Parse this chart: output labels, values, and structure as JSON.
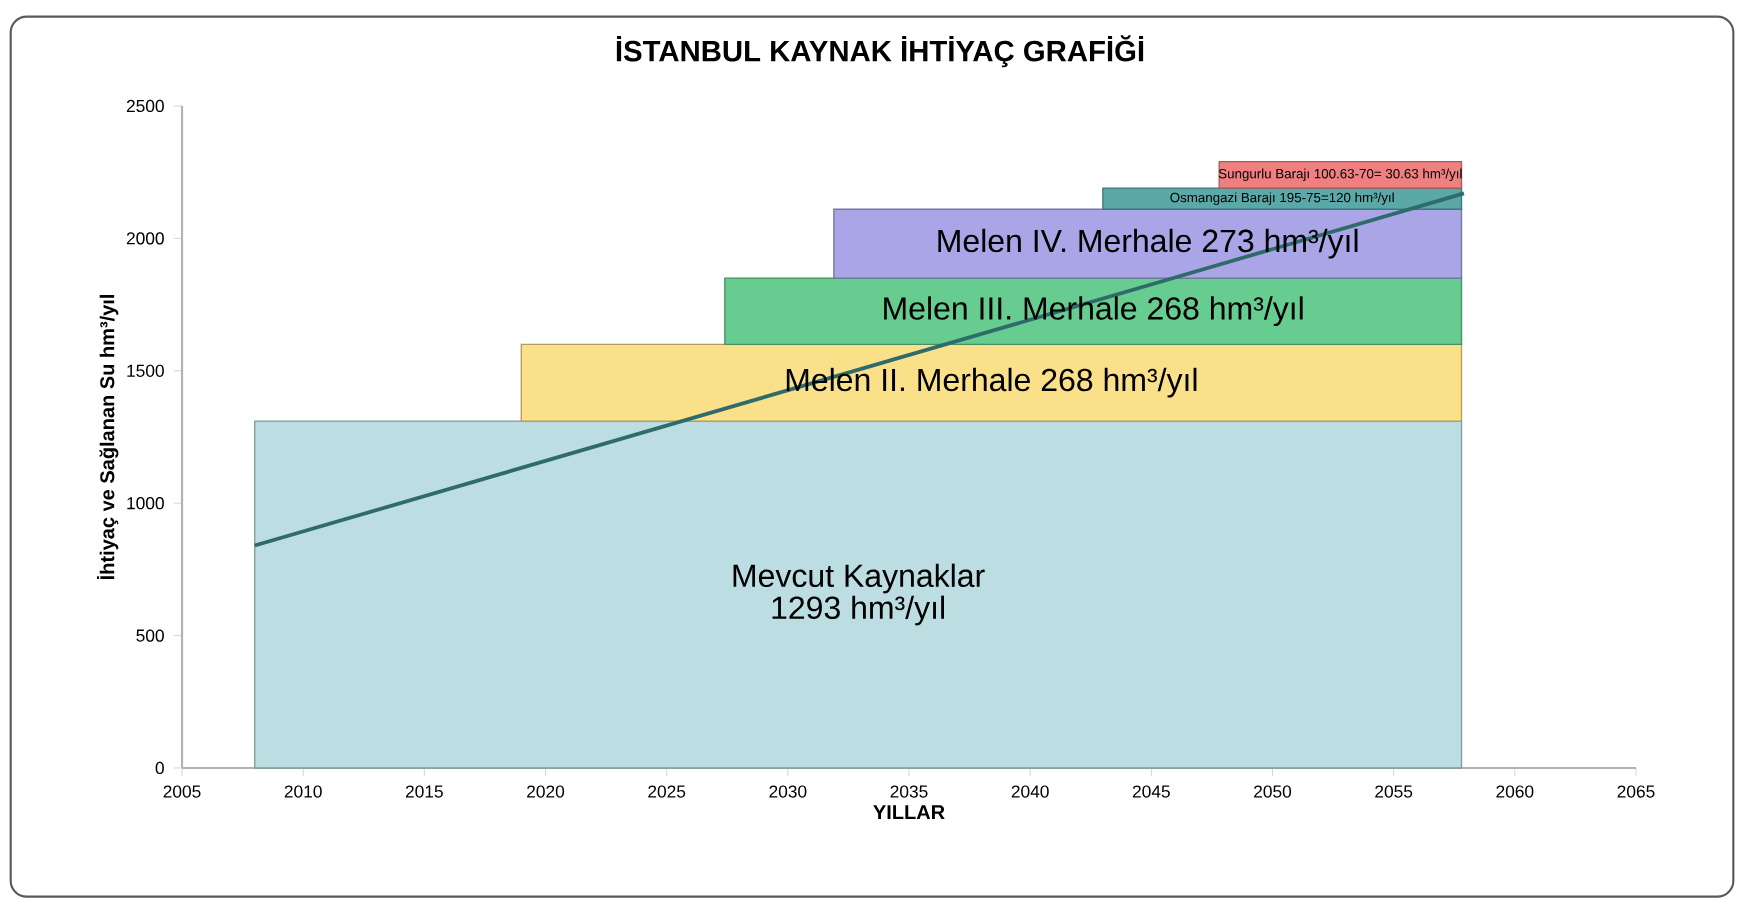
{
  "chart_data": {
    "type": "area",
    "stacked": true,
    "title": "İSTANBUL KAYNAK İHTİYAÇ GRAFİĞİ",
    "xlabel": "YILLAR",
    "ylabel": "İhtiyaç ve Sağlanan Su hm³/yıl",
    "xlim": [
      2005,
      2065
    ],
    "ylim": [
      0,
      2500
    ],
    "xticks": [
      2005,
      2010,
      2015,
      2020,
      2025,
      2030,
      2035,
      2040,
      2045,
      2050,
      2055,
      2060,
      2065
    ],
    "yticks": [
      0,
      500,
      1000,
      1500,
      2000,
      2500
    ],
    "series": [
      {
        "name": "Mevcut  Kaynaklar 1293 hm³/yıl",
        "color": "#bcdde1",
        "x": [
          2008,
          2057.8
        ],
        "values": [
          1310,
          1310
        ]
      },
      {
        "name": "Melen II. Merhale 268 hm³/yıl",
        "color": "#fbe08a",
        "x": [
          2019,
          2057.8
        ],
        "values": [
          290,
          290
        ]
      },
      {
        "name": "Melen III. Merhale 268 hm³/yıl",
        "color": "#66cc8f",
        "x": [
          2027.4,
          2057.8
        ],
        "values": [
          250,
          250
        ]
      },
      {
        "name": "Melen IV. Merhale 273 hm³/yıl",
        "color": "#a9a5e6",
        "x": [
          2031.9,
          2057.8
        ],
        "values": [
          260,
          260
        ]
      },
      {
        "name": "Osmangazi Barajı 195-75=120 hm³/yıl",
        "color": "#5aa9a8",
        "x": [
          2043,
          2057.8
        ],
        "values": [
          80,
          80
        ]
      },
      {
        "name": "Sungurlu Barajı 100.63-70= 30.63 hm³/yıl",
        "color": "#f08080",
        "x": [
          2047.8,
          2057.8
        ],
        "values": [
          100,
          100
        ]
      },
      {
        "type": "line",
        "color": "#2f6b6b",
        "x": [
          2008,
          2057.9
        ],
        "values": [
          840,
          2170
        ]
      }
    ]
  }
}
